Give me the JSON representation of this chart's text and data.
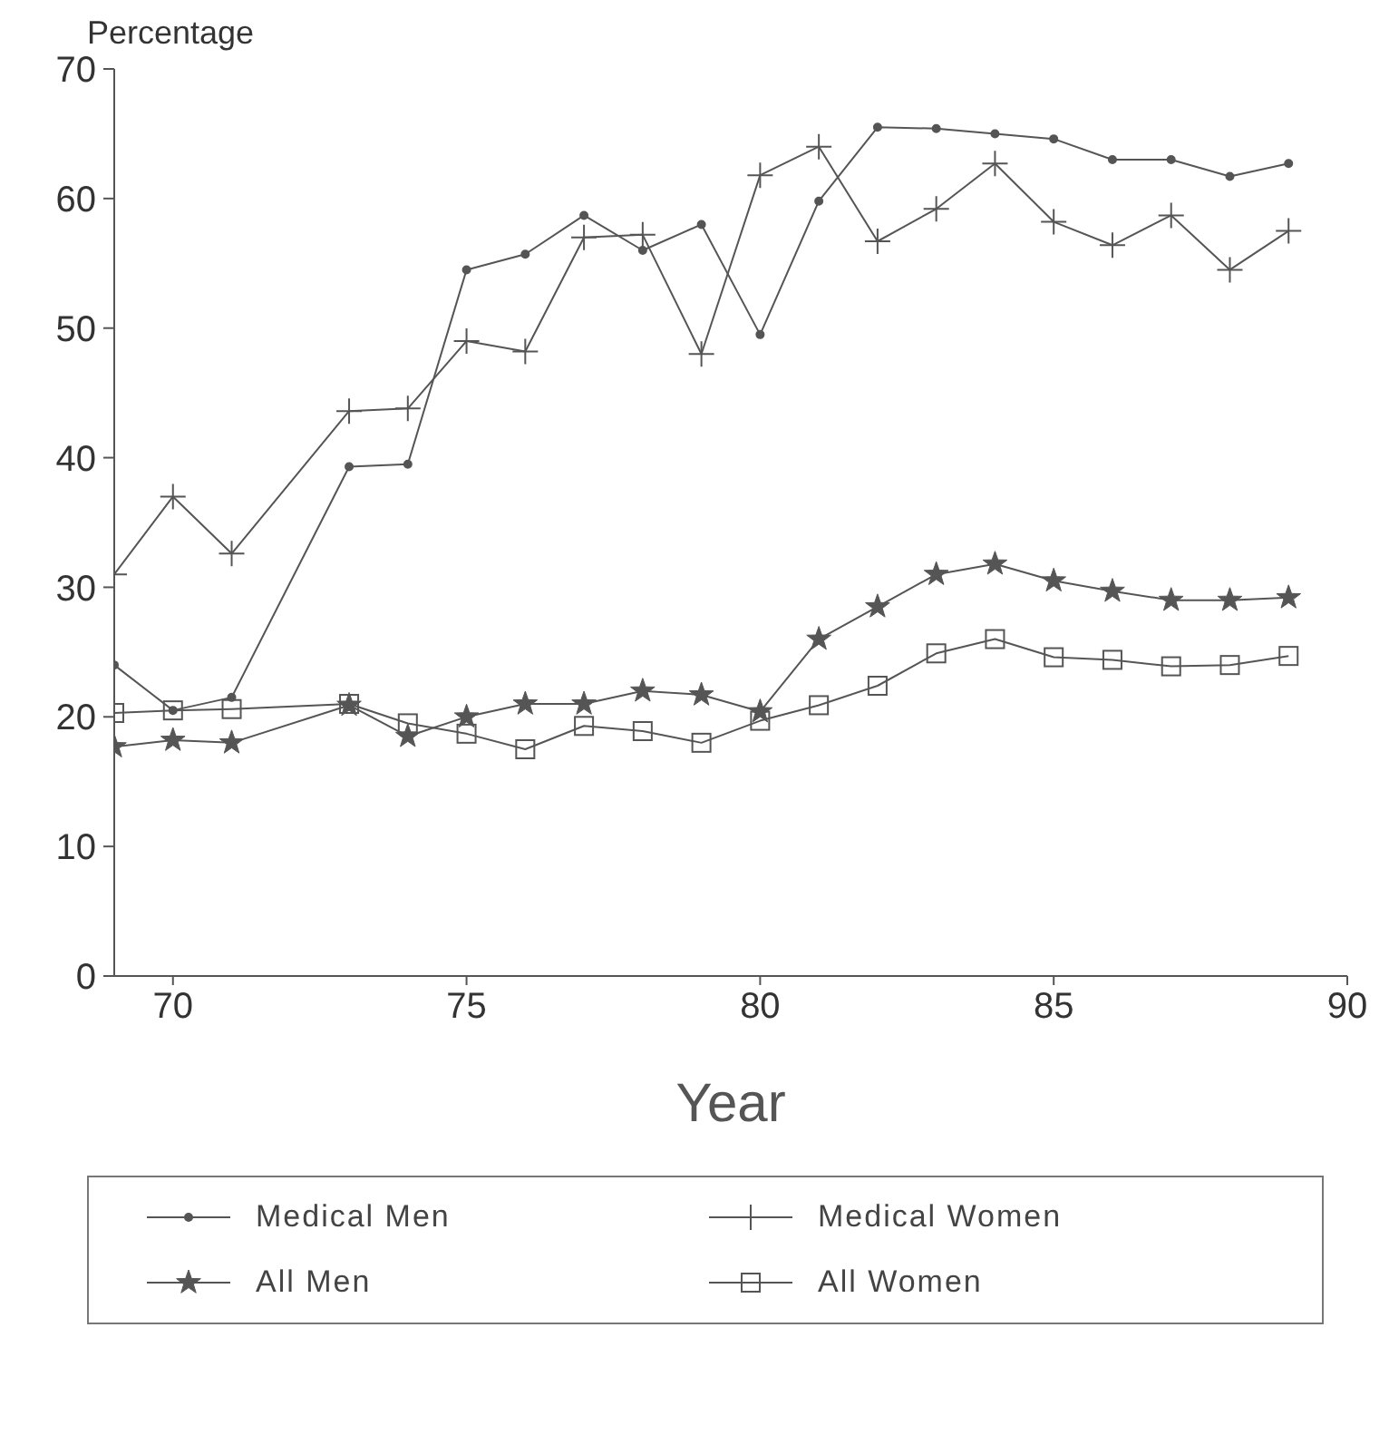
{
  "chart_data": {
    "type": "line",
    "ylabel": "Percentage",
    "xlabel": "Year",
    "x": [
      69,
      70,
      71,
      73,
      74,
      75,
      76,
      77,
      78,
      79,
      80,
      81,
      82,
      83,
      84,
      85,
      86,
      87,
      88,
      89
    ],
    "xlim": [
      69,
      90
    ],
    "xticks": [
      70,
      75,
      80,
      85,
      {
        "value": 90,
        "label": "90"
      }
    ],
    "ylim": [
      0,
      70
    ],
    "yticks": [
      0,
      10,
      20,
      30,
      40,
      50,
      60,
      70
    ],
    "grid": false,
    "legend": "bottom",
    "line_style": "solid",
    "series": [
      {
        "name": "Medical Men",
        "color": "#555555",
        "marker": "circle",
        "values": [
          24,
          20.5,
          21.5,
          39.3,
          39.5,
          54.5,
          55.7,
          58.7,
          56,
          58,
          49.5,
          59.8,
          65.5,
          65.4,
          65,
          64.6,
          63,
          63,
          61.7,
          62.7
        ]
      },
      {
        "name": "Medical Women",
        "color": "#555555",
        "marker": "cross",
        "values": [
          31,
          37,
          32.6,
          43.6,
          43.8,
          49,
          48.2,
          57,
          57.2,
          48,
          61.8,
          64,
          56.7,
          59.2,
          62.7,
          58.2,
          56.4,
          58.7,
          54.5,
          57.5
        ]
      },
      {
        "name": "All Men",
        "color": "#555555",
        "marker": "star",
        "values": [
          17.7,
          18.2,
          18,
          20.9,
          18.5,
          20,
          21,
          21,
          22,
          21.7,
          20.4,
          26,
          28.5,
          31,
          31.8,
          30.5,
          29.7,
          29,
          29,
          29.2
        ]
      },
      {
        "name": "All Women",
        "color": "#555555",
        "marker": "square",
        "values": [
          20.3,
          20.5,
          20.6,
          21,
          19.5,
          18.7,
          17.5,
          19.3,
          18.9,
          18,
          19.7,
          20.9,
          22.4,
          24.9,
          26,
          24.6,
          24.4,
          23.9,
          24,
          24.7
        ]
      }
    ]
  }
}
